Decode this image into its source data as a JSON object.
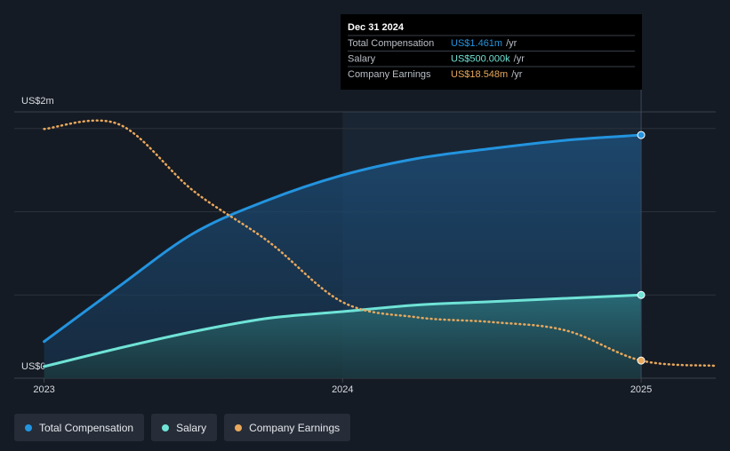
{
  "chart_data": {
    "type": "line",
    "x": [
      2023,
      2023.25,
      2023.5,
      2023.75,
      2024,
      2024.25,
      2024.5,
      2024.75,
      2025,
      2025.25
    ],
    "xlim": [
      2022.9,
      2025.25
    ],
    "xticks": [
      2023,
      2024,
      2025
    ],
    "ylim": [
      0,
      1.6
    ],
    "gridlines": [
      0.5,
      1,
      1.5
    ],
    "y_axis_top_label": "US$2m",
    "y_axis_bottom_label": "US$0",
    "y2lim": [
      0,
      280
    ],
    "series": [
      {
        "name": "Total Compensation",
        "color": "#2394df",
        "values": [
          0.22,
          0.55,
          0.87,
          1.07,
          1.22,
          1.32,
          1.38,
          1.43,
          1.461,
          null
        ]
      },
      {
        "name": "Salary",
        "color": "#6fe3d6",
        "values": [
          0.07,
          0.18,
          0.28,
          0.36,
          0.4,
          0.44,
          0.46,
          0.48,
          0.5,
          null
        ]
      },
      {
        "name": "Company Earnings",
        "color": "#e9a85c",
        "axis": "y2",
        "values": [
          262,
          267,
          197,
          144,
          80,
          64,
          59,
          50,
          18.548,
          13
        ]
      }
    ],
    "highlight_range": [
      2024,
      2025
    ],
    "tooltip": {
      "date": "Dec 31 2024",
      "rows": [
        {
          "label": "Total Compensation",
          "value": "US$1.461m",
          "unit": "/yr"
        },
        {
          "label": "Salary",
          "value": "US$500.000k",
          "unit": "/yr"
        },
        {
          "label": "Company Earnings",
          "value": "US$18.548m",
          "unit": "/yr"
        }
      ]
    }
  }
}
